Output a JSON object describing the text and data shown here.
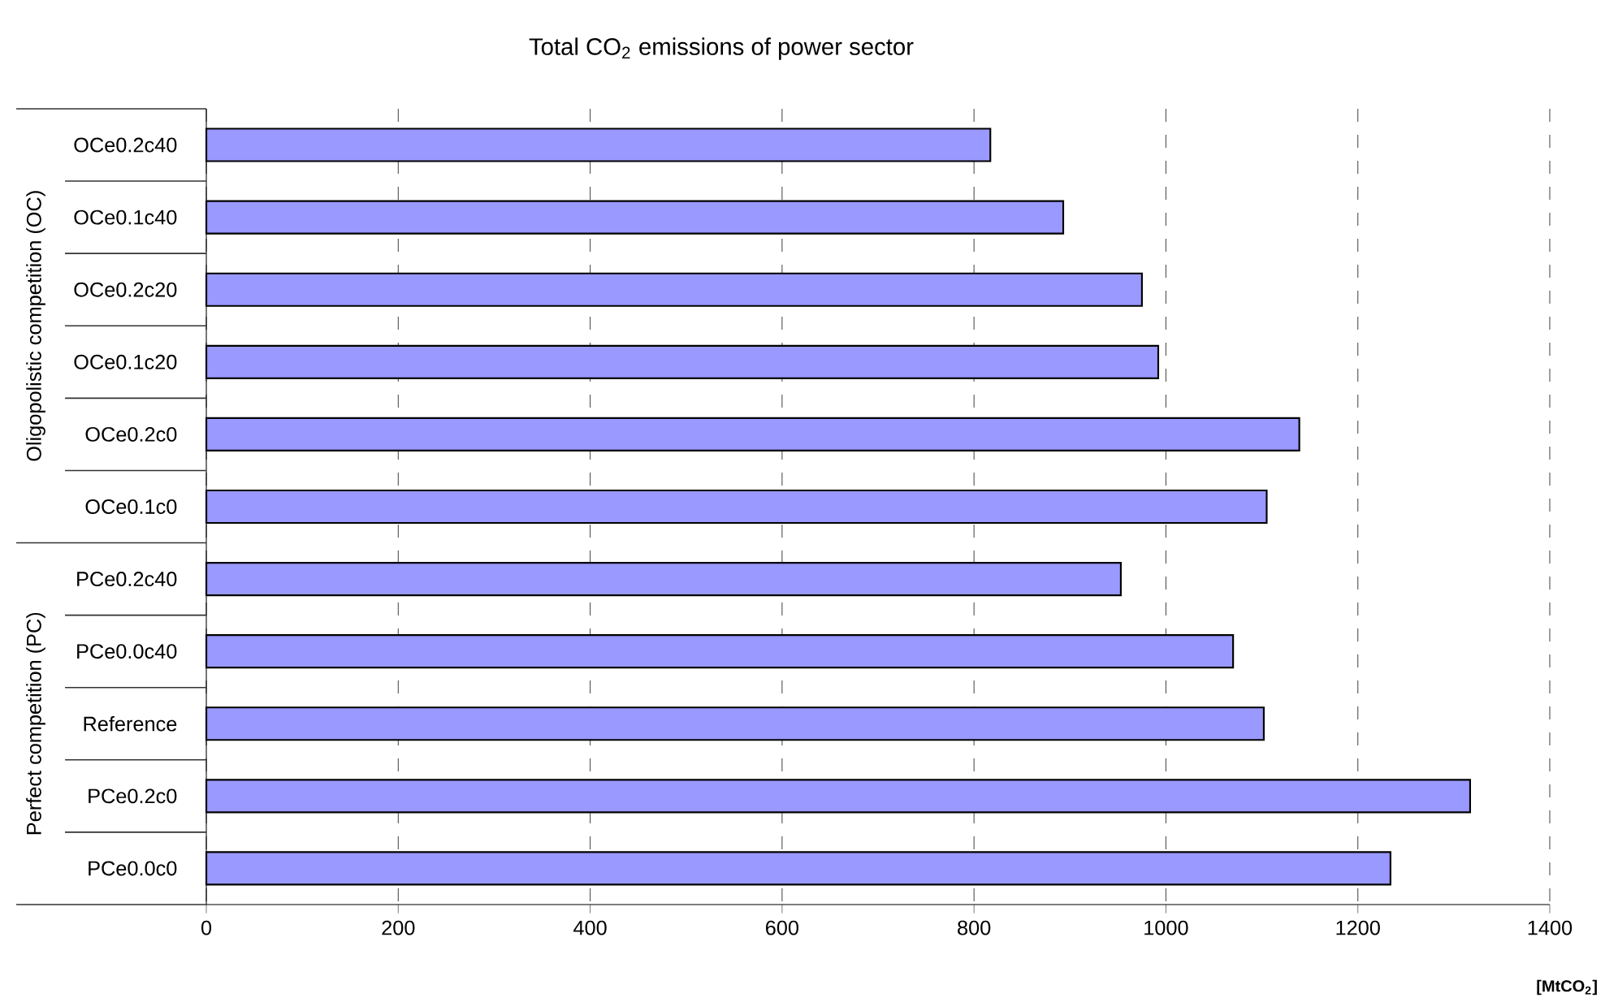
{
  "chart_data": {
    "type": "bar",
    "orientation": "horizontal",
    "title": "Total CO$_{2}$ emissions of power sector",
    "xlabel": "[MtCO$_{2}$]",
    "categories": [
      "OCe0.2c40",
      "OCe0.1c40",
      "OCe0.2c20",
      "OCe0.1c20",
      "OCe0.2c0",
      "OCe0.1c0",
      "PCe0.2c40",
      "PCe0.0c40",
      "Reference",
      "PCe0.2c0",
      "PCe0.0c0"
    ],
    "values": [
      817,
      893,
      975,
      992,
      1139,
      1105,
      953,
      1070,
      1102,
      1317,
      1234
    ],
    "color": "#9999ff",
    "xlim": [
      0,
      1400
    ],
    "xticks": [
      0,
      200,
      400,
      600,
      800,
      1000,
      1200,
      1400
    ],
    "grid": "x",
    "annotations": [
      "Oligopolistic competition (OC)",
      "Perfect competition (PC)"
    ]
  }
}
